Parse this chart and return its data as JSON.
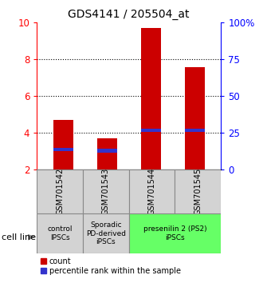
{
  "title": "GDS4141 / 205504_at",
  "bars": [
    "GSM701542",
    "GSM701543",
    "GSM701544",
    "GSM701545"
  ],
  "bar_bottoms": [
    2.0,
    2.0,
    2.0,
    2.0
  ],
  "bar_tops": [
    4.72,
    3.72,
    9.72,
    7.6
  ],
  "blue_bottoms": [
    3.0,
    2.95,
    4.08,
    4.08
  ],
  "blue_tops": [
    3.18,
    3.13,
    4.25,
    4.25
  ],
  "bar_color": "#cc0000",
  "blue_color": "#3333cc",
  "ylim_left": [
    2,
    10
  ],
  "ylim_right": [
    0,
    100
  ],
  "yticks_left": [
    2,
    4,
    6,
    8,
    10
  ],
  "yticks_right": [
    0,
    25,
    50,
    75,
    100
  ],
  "ytick_labels_right": [
    "0",
    "25",
    "50",
    "75",
    "100%"
  ],
  "group_info": [
    [
      0,
      1,
      "control\nIPSCs",
      "#d3d3d3"
    ],
    [
      1,
      2,
      "Sporadic\nPD-derived\niPSCs",
      "#d3d3d3"
    ],
    [
      2,
      4,
      "presenilin 2 (PS2)\niPSCs",
      "#66ff66"
    ]
  ],
  "cell_line_label": "cell line",
  "legend_count": "count",
  "legend_percentile": "percentile rank within the sample",
  "bar_width": 0.45
}
